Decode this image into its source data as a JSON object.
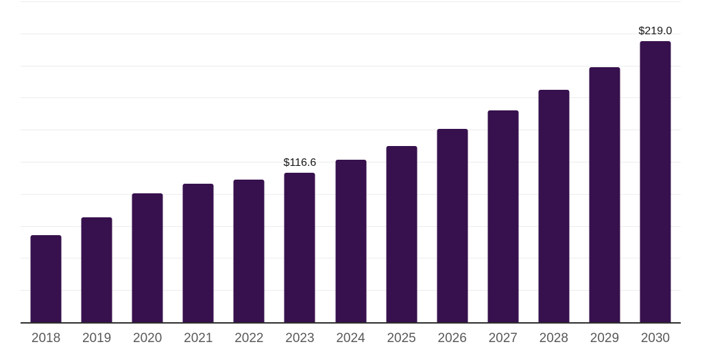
{
  "chart": {
    "background": "#ffffff",
    "bar_color": "#37114D",
    "grid_color": "#ececec",
    "axis_color": "#2e2e2e",
    "tick_label_color": "#595959",
    "value_label_color": "#161616"
  },
  "chart_data": {
    "type": "bar",
    "title": "",
    "xlabel": "",
    "ylabel": "",
    "categories": [
      "2018",
      "2019",
      "2020",
      "2021",
      "2022",
      "2023",
      "2024",
      "2025",
      "2026",
      "2027",
      "2028",
      "2029",
      "2030"
    ],
    "values": [
      68.0,
      81.5,
      100.5,
      108.0,
      111.0,
      116.6,
      126.5,
      137.5,
      150.5,
      165.0,
      181.0,
      198.5,
      219.0
    ],
    "value_labels": {
      "2023": "$116.6",
      "2030": "$219.0"
    },
    "currency_prefix": "$",
    "ylim": [
      0,
      250
    ],
    "gridline_step": 25,
    "grid": "horizontal",
    "legend": "none"
  }
}
